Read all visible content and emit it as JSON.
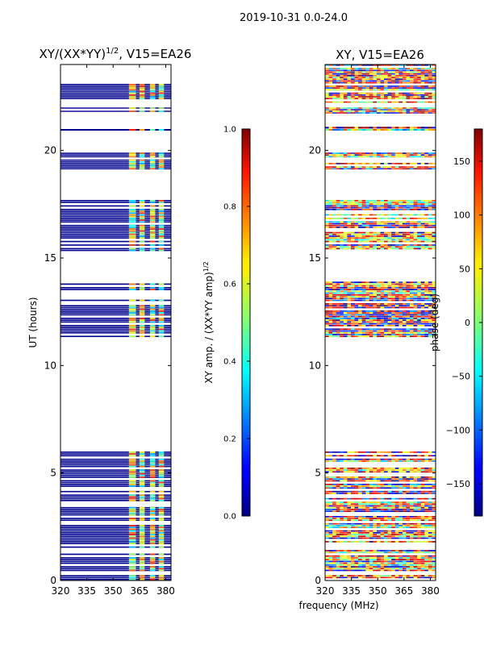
{
  "figure": {
    "suptitle": "2019-10-31 0.0-24.0",
    "xlabel": "frequency (MHz)"
  },
  "chart_data": [
    {
      "type": "heatmap",
      "title_main": "XY/(XX*YY)",
      "title_sup": "1/2",
      "title_rest": ", V15=EA26",
      "xlabel": "",
      "ylabel": "UT (hours)",
      "xlim": [
        320,
        383
      ],
      "ylim": [
        0,
        24
      ],
      "xticks": [
        320,
        335,
        350,
        365,
        380
      ],
      "yticks": [
        0,
        5,
        10,
        15,
        20
      ],
      "data_time_ranges_hours": [
        [
          0.0,
          6.0
        ],
        [
          11.3,
          13.9
        ],
        [
          15.3,
          17.7
        ],
        [
          19.1,
          19.9
        ],
        [
          20.9,
          21.1
        ],
        [
          21.7,
          22.0
        ],
        [
          22.2,
          23.1
        ]
      ],
      "bright_channel_bands_MHz": [
        [
          359,
          363
        ],
        [
          365,
          368
        ],
        [
          371,
          374
        ],
        [
          376,
          379
        ]
      ],
      "colorbar": {
        "label_main": "XY amp. / (XX*YY amp)",
        "label_sup": "1/2",
        "range": [
          0.0,
          1.0
        ],
        "ticks": [
          "0.0",
          "0.2",
          "0.4",
          "0.6",
          "0.8",
          "1.0"
        ]
      }
    },
    {
      "type": "heatmap",
      "title_main": "XY, V15=EA26",
      "ylabel": "",
      "xlim": [
        320,
        383
      ],
      "ylim": [
        0,
        24
      ],
      "xticks": [
        320,
        335,
        350,
        365,
        380
      ],
      "yticks": [
        0,
        5,
        10,
        15,
        20
      ],
      "data_time_ranges_hours": [
        [
          0.0,
          6.0
        ],
        [
          11.3,
          13.9
        ],
        [
          15.3,
          17.7
        ],
        [
          19.1,
          19.9
        ],
        [
          20.9,
          21.1
        ],
        [
          21.7,
          22.0
        ],
        [
          22.2,
          24.0
        ]
      ],
      "colorbar": {
        "label": "phase (deg)",
        "range": [
          -180,
          180
        ],
        "ticks": [
          "150",
          "100",
          "50",
          "0",
          "−50",
          "−100",
          "−150"
        ],
        "tick_values": [
          150,
          100,
          50,
          0,
          -50,
          -100,
          -150
        ]
      }
    }
  ]
}
